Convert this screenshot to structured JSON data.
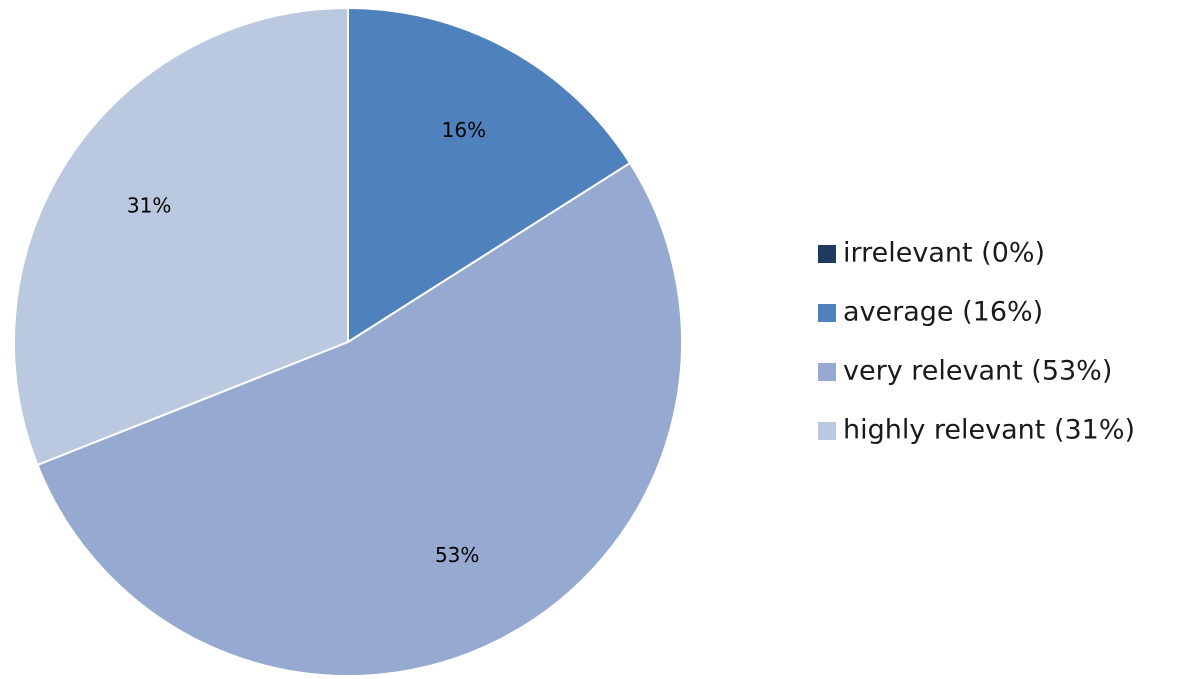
{
  "chart_data": {
    "type": "pie",
    "title": "",
    "start_angle_deg": -90,
    "direction": "clockwise",
    "legend_position": "right",
    "slices": [
      {
        "label": "irrelevant",
        "value": 0,
        "data_label": "",
        "legend_text": "irrelevant (0%)",
        "color": "#1f3a5f"
      },
      {
        "label": "average",
        "value": 16,
        "data_label": "16%",
        "legend_text": "average (16%)",
        "color": "#4f81bd"
      },
      {
        "label": "very relevant",
        "value": 53,
        "data_label": "53%",
        "legend_text": "very relevant (53%)",
        "color": "#95a9d1"
      },
      {
        "label": "highly relevant",
        "value": 31,
        "data_label": "31%",
        "legend_text": "highly relevant (31%)",
        "color": "#bac8e0"
      }
    ]
  }
}
